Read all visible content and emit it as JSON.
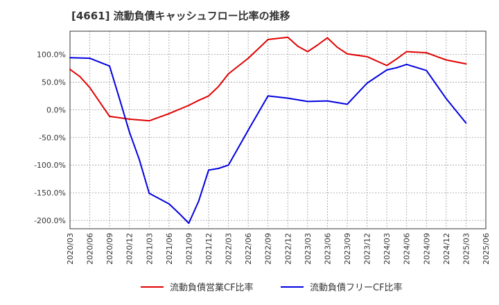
{
  "chart_data": {
    "type": "line",
    "title": "[4661]  流動負債キャッシュフロー比率の推移",
    "xlabel": "",
    "ylabel": "",
    "ylim": [
      -215,
      142
    ],
    "yticks": [
      100,
      50,
      0,
      -50,
      -100,
      -150,
      -200
    ],
    "ytick_labels": [
      "100.0%",
      "50.0%",
      "0.0%",
      "-50.0%",
      "-100.0%",
      "-150.0%",
      "-200.0%"
    ],
    "categories": [
      "2020/03",
      "2020/06",
      "2020/09",
      "2020/12",
      "2021/03",
      "2021/06",
      "2021/09",
      "2021/12",
      "2022/03",
      "2022/06",
      "2022/09",
      "2022/12",
      "2023/03",
      "2023/06",
      "2023/09",
      "2023/12",
      "2024/03",
      "2024/06",
      "2024/09",
      "2024/12",
      "2025/03",
      "2025/06"
    ],
    "grid": true,
    "legend_position": "bottom",
    "series": [
      {
        "name": "流動負債営業CF比率",
        "color": "#e00000",
        "points": [
          {
            "x": 0,
            "y": 73
          },
          {
            "x": 0.5,
            "y": 60
          },
          {
            "x": 1,
            "y": 40
          },
          {
            "x": 2,
            "y": -12
          },
          {
            "x": 3,
            "y": -17
          },
          {
            "x": 4,
            "y": -20
          },
          {
            "x": 5,
            "y": -7
          },
          {
            "x": 6,
            "y": 8
          },
          {
            "x": 6.5,
            "y": 17
          },
          {
            "x": 7,
            "y": 25
          },
          {
            "x": 7.5,
            "y": 42
          },
          {
            "x": 8,
            "y": 65
          },
          {
            "x": 9,
            "y": 93
          },
          {
            "x": 10,
            "y": 127
          },
          {
            "x": 11,
            "y": 131
          },
          {
            "x": 11.5,
            "y": 115
          },
          {
            "x": 12,
            "y": 105
          },
          {
            "x": 12.5,
            "y": 117
          },
          {
            "x": 13,
            "y": 130
          },
          {
            "x": 13.5,
            "y": 113
          },
          {
            "x": 14,
            "y": 101
          },
          {
            "x": 15,
            "y": 96
          },
          {
            "x": 16,
            "y": 80
          },
          {
            "x": 16.5,
            "y": 92
          },
          {
            "x": 17,
            "y": 105
          },
          {
            "x": 18,
            "y": 103
          },
          {
            "x": 19,
            "y": 90
          },
          {
            "x": 20,
            "y": 83
          }
        ]
      },
      {
        "name": "流動負債フリーCF比率",
        "color": "#0000e0",
        "points": [
          {
            "x": 0,
            "y": 94
          },
          {
            "x": 1,
            "y": 93
          },
          {
            "x": 2,
            "y": 79
          },
          {
            "x": 2.5,
            "y": 20
          },
          {
            "x": 3,
            "y": -40
          },
          {
            "x": 3.5,
            "y": -90
          },
          {
            "x": 4,
            "y": -151
          },
          {
            "x": 5,
            "y": -170
          },
          {
            "x": 5.5,
            "y": -187
          },
          {
            "x": 6,
            "y": -205
          },
          {
            "x": 6.5,
            "y": -165
          },
          {
            "x": 7,
            "y": -109
          },
          {
            "x": 7.5,
            "y": -106
          },
          {
            "x": 8,
            "y": -100
          },
          {
            "x": 9,
            "y": -37
          },
          {
            "x": 10,
            "y": 25
          },
          {
            "x": 11,
            "y": 21
          },
          {
            "x": 12,
            "y": 15
          },
          {
            "x": 13,
            "y": 16
          },
          {
            "x": 14,
            "y": 10
          },
          {
            "x": 15,
            "y": 48
          },
          {
            "x": 16,
            "y": 72
          },
          {
            "x": 16.5,
            "y": 76
          },
          {
            "x": 17,
            "y": 82
          },
          {
            "x": 18,
            "y": 71
          },
          {
            "x": 19,
            "y": 20
          },
          {
            "x": 20,
            "y": -24
          }
        ]
      }
    ]
  }
}
